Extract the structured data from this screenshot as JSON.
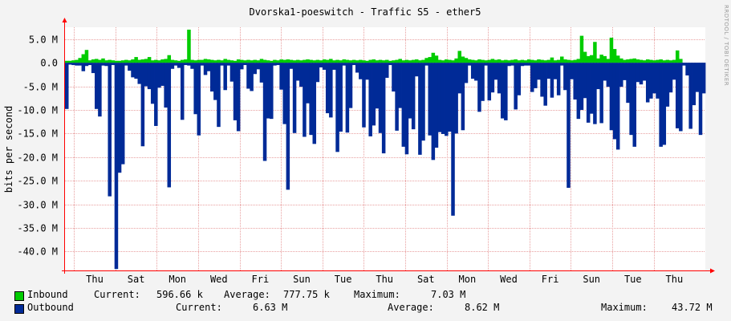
{
  "chart_data": {
    "type": "area",
    "title": "Dvorska1-poeswitch - Traffic S5 - ether5",
    "ylabel": "bits per second",
    "ylim": [
      -44000000,
      7500000
    ],
    "y_ticks": [
      {
        "value": 5000000,
        "label": "5.0 M"
      },
      {
        "value": 0,
        "label": "0.0"
      },
      {
        "value": -5000000,
        "label": "-5.0 M"
      },
      {
        "value": -10000000,
        "label": "-10.0 M"
      },
      {
        "value": -15000000,
        "label": "-15.0 M"
      },
      {
        "value": -20000000,
        "label": "-20.0 M"
      },
      {
        "value": -25000000,
        "label": "-25.0 M"
      },
      {
        "value": -30000000,
        "label": "-30.0 M"
      },
      {
        "value": -35000000,
        "label": "-35.0 M"
      },
      {
        "value": -40000000,
        "label": "-40.0 M"
      }
    ],
    "x_ticks": [
      "Thu",
      "Sat",
      "Mon",
      "Wed",
      "Fri",
      "Sun",
      "Tue",
      "Thu",
      "Sat",
      "Mon",
      "Wed",
      "Fri",
      "Sun",
      "Tue",
      "Thu"
    ],
    "grid": true,
    "series": [
      {
        "name": "Inbound",
        "color": "#00cc00",
        "values": [
          0.4,
          0.4,
          0.5,
          0.6,
          1.0,
          1.8,
          2.7,
          0.5,
          0.7,
          0.8,
          0.6,
          0.9,
          0.5,
          0.6,
          0.5,
          0.4,
          0.4,
          0.5,
          0.6,
          0.5,
          0.7,
          1.2,
          0.6,
          0.7,
          0.8,
          1.2,
          0.5,
          0.6,
          0.5,
          0.7,
          0.8,
          1.6,
          0.6,
          0.5,
          0.4,
          0.6,
          0.7,
          7.0,
          0.6,
          0.5,
          0.6,
          0.6,
          0.8,
          0.7,
          0.6,
          0.5,
          0.6,
          0.5,
          0.8,
          0.6,
          0.5,
          0.4,
          0.7,
          0.6,
          0.5,
          0.6,
          0.5,
          0.6,
          0.5,
          0.8,
          0.6,
          0.5,
          0.4,
          0.6,
          0.5,
          0.7,
          0.6,
          0.7,
          0.6,
          0.5,
          0.6,
          0.5,
          0.6,
          0.7,
          0.6,
          0.5,
          0.6,
          0.5,
          0.7,
          0.6,
          0.8,
          0.5,
          0.6,
          0.5,
          0.7,
          0.6,
          0.5,
          0.6,
          0.5,
          0.6,
          0.5,
          0.4,
          0.6,
          0.7,
          0.5,
          0.6,
          0.5,
          0.6,
          0.4,
          0.5,
          0.6,
          0.8,
          0.5,
          0.6,
          0.5,
          0.6,
          0.7,
          0.5,
          0.6,
          1.0,
          1.2,
          2.1,
          1.5,
          0.6,
          0.5,
          0.7,
          0.6,
          0.5,
          0.9,
          2.5,
          1.3,
          1.0,
          0.7,
          0.6,
          0.5,
          0.7,
          0.6,
          0.5,
          0.6,
          0.8,
          0.6,
          0.7,
          0.5,
          0.6,
          0.5,
          0.6,
          0.7,
          0.5,
          0.6,
          0.5,
          0.7,
          0.6,
          0.5,
          0.7,
          0.6,
          0.5,
          0.6,
          1.1,
          0.5,
          0.6,
          1.3,
          0.7,
          0.6,
          0.5,
          0.6,
          0.8,
          5.7,
          2.3,
          1.4,
          1.6,
          4.4,
          0.9,
          1.7,
          1.4,
          0.8,
          5.3,
          2.9,
          1.5,
          0.9,
          0.6,
          0.7,
          0.8,
          0.9,
          0.7,
          0.6,
          0.5,
          0.7,
          0.6,
          0.5,
          0.6,
          0.7,
          0.5,
          0.6,
          0.5,
          0.6,
          2.6,
          0.8
        ],
        "current": "596.66 k",
        "average": "777.75 k",
        "maximum": "7.03 M"
      },
      {
        "name": "Outbound",
        "color": "#002a97",
        "values": [
          9.8,
          0.4,
          0.5,
          0.6,
          0.6,
          1.8,
          0.7,
          0.5,
          2.2,
          9.8,
          11.4,
          0.6,
          0.7,
          28.3,
          0.5,
          43.7,
          23.3,
          21.5,
          0.6,
          1.7,
          3.1,
          3.4,
          4.5,
          17.7,
          5.0,
          5.6,
          8.7,
          13.4,
          5.3,
          4.9,
          9.5,
          26.4,
          1.3,
          0.6,
          1.1,
          12.1,
          0.5,
          0.6,
          1.3,
          10.9,
          15.4,
          0.6,
          2.6,
          1.8,
          6.1,
          7.9,
          13.6,
          0.6,
          5.8,
          0.6,
          4.0,
          12.2,
          14.5,
          1.4,
          0.5,
          5.5,
          6.0,
          2.4,
          1.4,
          4.2,
          20.8,
          11.8,
          11.9,
          0.6,
          0.5,
          5.7,
          13.0,
          26.9,
          1.3,
          14.9,
          3.8,
          5.1,
          15.7,
          8.6,
          15.3,
          17.2,
          4.1,
          1.0,
          1.5,
          10.7,
          11.6,
          1.5,
          18.9,
          14.6,
          0.6,
          14.8,
          9.6,
          0.5,
          2.1,
          3.5,
          13.7,
          3.6,
          15.6,
          13.3,
          9.7,
          14.9,
          19.2,
          3.2,
          0.5,
          6.1,
          14.4,
          9.6,
          17.8,
          19.4,
          11.8,
          14.1,
          2.9,
          19.5,
          16.5,
          0.6,
          15.4,
          20.6,
          18.0,
          14.7,
          15.1,
          15.5,
          14.6,
          32.4,
          15.0,
          6.5,
          14.3,
          4.3,
          0.6,
          3.4,
          3.8,
          10.4,
          8.1,
          0.6,
          8.0,
          6.3,
          3.6,
          6.5,
          11.8,
          12.2,
          0.7,
          0.6,
          9.9,
          6.9,
          0.7,
          0.6,
          0.6,
          6.2,
          5.4,
          3.6,
          7.2,
          9.1,
          3.4,
          7.4,
          3.5,
          6.9,
          0.6,
          5.8,
          26.5,
          3.5,
          7.8,
          11.9,
          10.0,
          7.5,
          12.7,
          10.8,
          13.0,
          5.6,
          12.8,
          3.8,
          5.1,
          14.3,
          16.2,
          18.4,
          5.1,
          3.7,
          8.5,
          15.3,
          17.8,
          4.1,
          4.6,
          3.8,
          8.4,
          7.6,
          6.5,
          7.6,
          17.8,
          17.4,
          9.3,
          6.3,
          3.6,
          13.9,
          14.5,
          0.6,
          2.7,
          14.0,
          9.0,
          6.2,
          15.3,
          6.5
        ],
        "current": "6.63 M",
        "average": "8.62 M",
        "maximum": "43.72 M"
      }
    ]
  },
  "legend": {
    "inbound": {
      "name": "Inbound",
      "current_label": "Current:",
      "current": "596.66 k",
      "average_label": "Average:",
      "average": "777.75 k",
      "maximum_label": "Maximum:",
      "maximum": "7.03 M"
    },
    "outbound": {
      "name": "Outbound",
      "current_label": "Current:",
      "current": "6.63 M",
      "average_label": "Average:",
      "average": "8.62 M",
      "maximum_label": "Maximum:",
      "maximum": "43.72 M"
    }
  },
  "watermark": "RRDTOOL / TOBI OETIKER",
  "colors": {
    "inbound": "#00cc00",
    "outbound": "#002a97",
    "axis": "#ff0000",
    "grid": "#e8a0a0"
  }
}
